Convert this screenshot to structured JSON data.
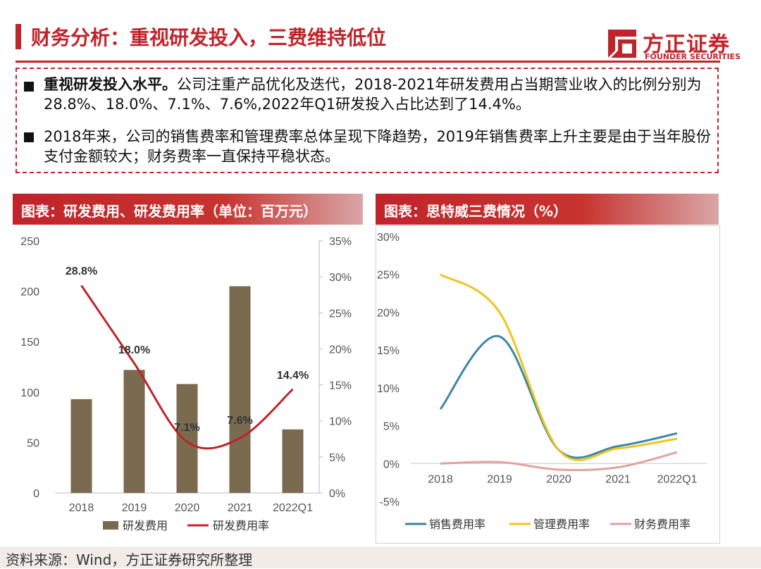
{
  "header": {
    "title": "财务分析：重视研发投入，三费维持低位",
    "logo_cn": "方正证券",
    "logo_en": "FOUNDER SECURITIES",
    "brand_color": "#c0242b"
  },
  "bullets": [
    {
      "bold": "重视研发投入水平。",
      "text": "公司注重产品优化及迭代，2018-2021年研发费用占当期营业收入的比例分别为28.8%、18.0%、7.1%、7.6%,2022年Q1研发投入占比达到了14.4%。"
    },
    {
      "bold": "",
      "text": "2018年来，公司的销售费率和管理费率总体呈现下降趋势，2019年销售费率上升主要是由于当年股份支付金额较大；财务费率一直保持平稳状态。"
    }
  ],
  "chart1_title": "图表：研发费用、研发费用率（单位：百万元）",
  "chart2_title": "图表：思特威三费情况（%）",
  "footer": "资料来源：Wind，方正证券研究所整理",
  "chart_data": [
    {
      "type": "bar",
      "categories": [
        "2018",
        "2019",
        "2020",
        "2021",
        "2022Q1"
      ],
      "series": [
        {
          "name": "研发费用",
          "type": "bar",
          "axis": "left",
          "color": "#7a6a4f",
          "values": [
            93,
            122,
            108,
            205,
            63
          ]
        },
        {
          "name": "研发费用率",
          "type": "line",
          "axis": "right",
          "color": "#c0242b",
          "values": [
            28.8,
            18.0,
            7.1,
            7.6,
            14.4
          ],
          "labels": [
            "28.8%",
            "18.0%",
            "7.1%",
            "7.6%",
            "14.4%"
          ]
        }
      ],
      "y_left": {
        "ticks": [
          "0",
          "50",
          "100",
          "150",
          "200",
          "250"
        ],
        "lim": [
          0,
          250
        ]
      },
      "y_right": {
        "ticks": [
          "0%",
          "5%",
          "10%",
          "15%",
          "20%",
          "25%",
          "30%",
          "35%"
        ],
        "lim": [
          0,
          35
        ]
      },
      "legend": "bottom"
    },
    {
      "type": "line",
      "categories": [
        "2018",
        "2019",
        "2020",
        "2021",
        "2022Q1"
      ],
      "series": [
        {
          "name": "销售费用率",
          "color": "#3a87a5",
          "values": [
            7.2,
            16.8,
            1.8,
            2.3,
            4.0
          ]
        },
        {
          "name": "管理费用率",
          "color": "#f0c419",
          "values": [
            25.0,
            20.0,
            1.8,
            2.0,
            3.3
          ]
        },
        {
          "name": "财务费用率",
          "color": "#e0a2a2",
          "values": [
            0.0,
            0.2,
            -0.8,
            -0.5,
            1.5
          ]
        }
      ],
      "y": {
        "ticks": [
          "-5%",
          "0%",
          "5%",
          "10%",
          "15%",
          "20%",
          "25%",
          "30%"
        ],
        "lim": [
          -5,
          30
        ]
      },
      "legend": "bottom"
    }
  ]
}
